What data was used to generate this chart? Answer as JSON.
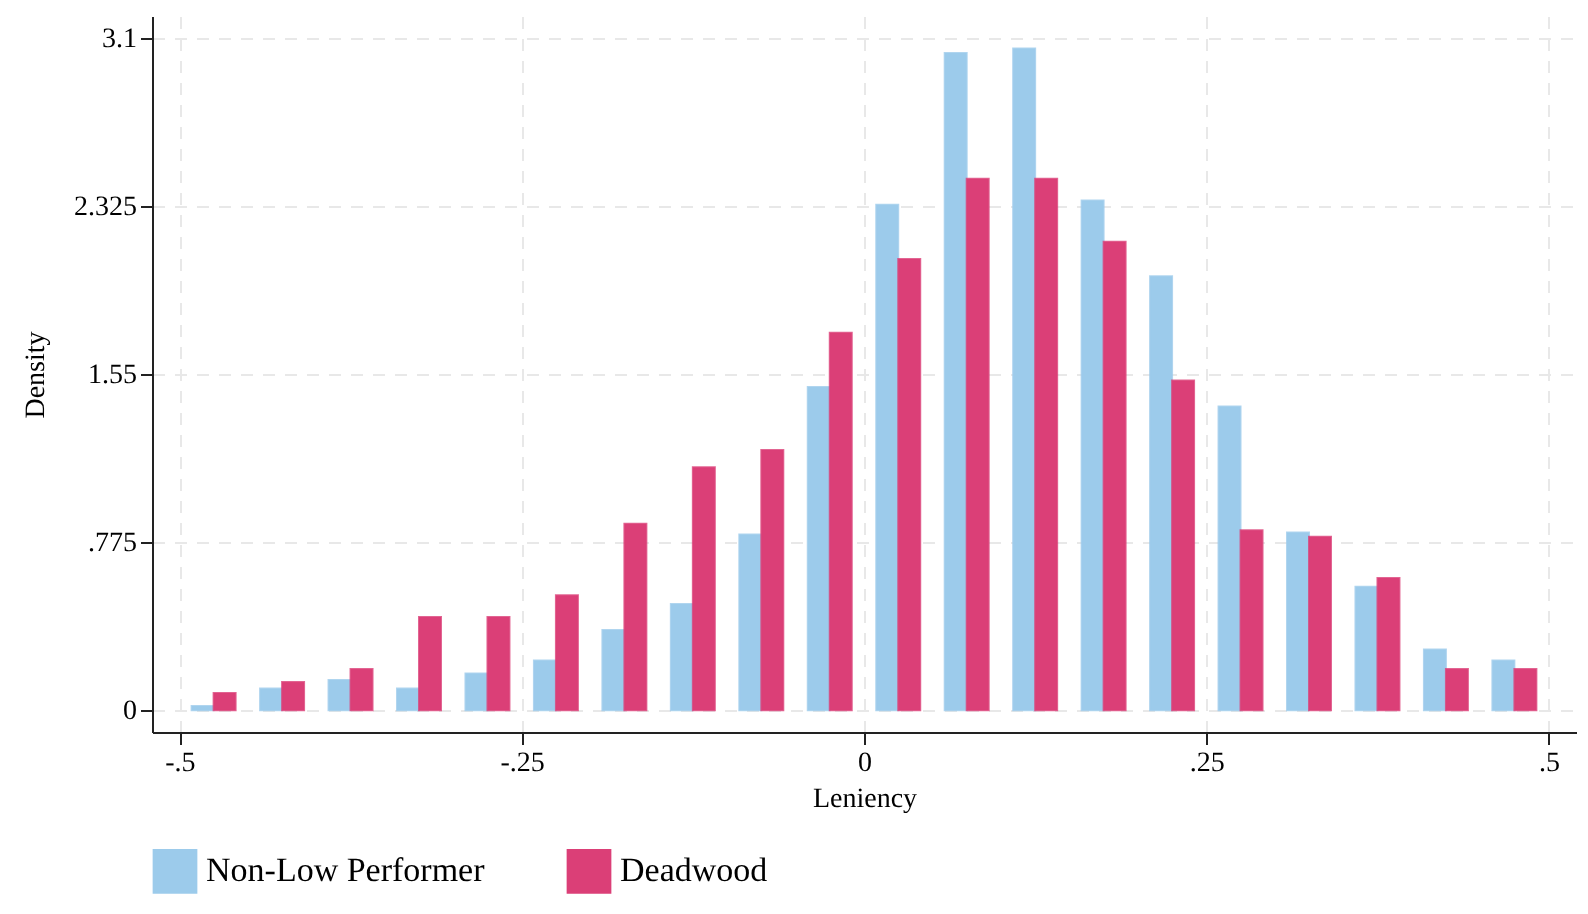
{
  "chart_data": {
    "type": "bar",
    "xlabel": "Leniency",
    "ylabel": "Density",
    "x": [
      -0.475,
      -0.425,
      -0.375,
      -0.325,
      -0.275,
      -0.225,
      -0.175,
      -0.125,
      -0.075,
      -0.025,
      0.025,
      0.075,
      0.125,
      0.175,
      0.225,
      0.275,
      0.325,
      0.375,
      0.425,
      0.475
    ],
    "series": [
      {
        "name": "Non-Low Performer",
        "color": "#9ccbeb",
        "values": [
          0.02,
          0.1,
          0.14,
          0.1,
          0.17,
          0.23,
          0.37,
          0.49,
          0.81,
          1.49,
          2.33,
          3.03,
          3.05,
          2.35,
          2.0,
          1.4,
          0.82,
          0.57,
          0.28,
          0.23
        ]
      },
      {
        "name": "Deadwood",
        "color": "#db3f77",
        "values": [
          0.08,
          0.13,
          0.19,
          0.43,
          0.43,
          0.53,
          0.86,
          1.12,
          1.2,
          1.74,
          2.08,
          2.45,
          2.45,
          2.16,
          1.52,
          0.83,
          0.8,
          0.61,
          0.19,
          0.19
        ]
      }
    ],
    "xlim": [
      -0.52,
      0.52
    ],
    "xticks": [
      {
        "value": -0.5,
        "label": "-.5"
      },
      {
        "value": -0.25,
        "label": "-.25"
      },
      0,
      {
        "value": 0.25,
        "label": ".25"
      },
      {
        "value": 0.5,
        "label": ".5"
      }
    ],
    "ylim": [
      -0.1,
      3.2
    ],
    "yticks": [
      0,
      {
        "value": 0.775,
        "label": ".775"
      },
      1.55,
      2.325,
      3.1
    ],
    "grid": true,
    "legend": "bottom"
  }
}
